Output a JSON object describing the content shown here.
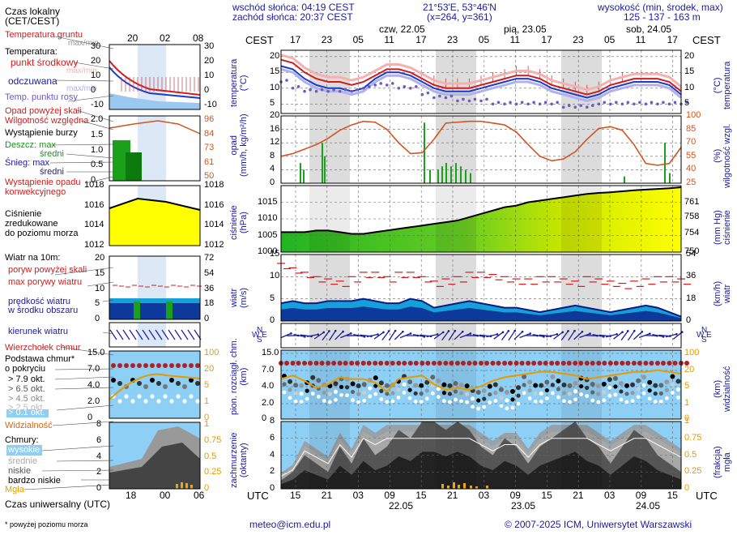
{
  "header": {
    "sunrise": "wschód słońca: 04:19 CEST",
    "sunset": "zachód słońca: 20:37 CEST",
    "coords": "21°53'E, 53°46'N",
    "grid": "(x=264,  y=361)",
    "elev_label": "wysokość (min, środek, max)",
    "elev_values": "125 - 137 - 163 m"
  },
  "days_top": [
    "czw, 22.05",
    "pią, 23.05",
    "sob, 24.05"
  ],
  "cest_label": "CEST",
  "utc_label": "UTC",
  "hours_cest": [
    "17",
    "23",
    "05",
    "11",
    "17",
    "23",
    "05",
    "11",
    "17",
    "23",
    "05",
    "11",
    "17"
  ],
  "hours_utc": [
    "15",
    "21",
    "03",
    "09",
    "15",
    "21",
    "03",
    "09",
    "15",
    "21",
    "03",
    "09",
    "15"
  ],
  "dates_bottom": [
    "22.05",
    "23.05",
    "24.05"
  ],
  "legend": {
    "czas_lokalny": "Czas lokalny",
    "cet_cest": "(CET/CEST)",
    "czas_uniwersalny": "Czas uniwersalny (UTC)",
    "mini_hours_top": [
      "20",
      "02",
      "08"
    ],
    "mini_hours_bottom": [
      "18",
      "00",
      "06"
    ],
    "temp_gruntu": "Temperatura gruntu",
    "temp_gruntu_sub": "max/min",
    "temperatura": "Temperatura:",
    "punkt_srodkowy": "punkt środkowy",
    "max_min": "max/min",
    "odczuwana": "odczuwana",
    "max_min2": "max/min",
    "punkt_rosy": "Temp. punktu rosy",
    "opad_powyzej": "Opad powyżej skali",
    "wilgotnosc": "Wilgotność względna",
    "burza": "Wystąpienie burzy",
    "deszcz_max": "Deszcz: max",
    "deszcz_sredni": "średni",
    "snieg_max": "Śnieg:   max",
    "snieg_sredni": "średni",
    "wystapienie_opadu": "Wystąpienie opadu",
    "konwekcyjnego": "konwekcyjnego",
    "cisnienie": "Ciśnienie",
    "zredukowane": "zredukowane",
    "do_poziomu": "do poziomu morza",
    "wiatr_10m": "Wiatr na 10m:",
    "poryw_powyzej": "poryw powyżej skali",
    "max_porywy": "max porywy wiatru",
    "predkosc": "prędkość wiatru",
    "w_srodku": "w środku obszaru",
    "kierunek": "kierunek wiatru",
    "wierzcholek": "Wierzchołek chmur",
    "podstawa": "Podstawa chmur*",
    "o_pokryciu": "o pokryciu",
    "okt79": "> 7.9 okt.",
    "okt65": "> 6.5 okt.",
    "okt45": "> 4.5 okt.",
    "okt25": "> 2.5 okt.",
    "okt01": "> 0.1 okt.",
    "widzialnosc": "Widzialność",
    "chmury": "Chmury:",
    "wysokie": "wysokie",
    "srednie": "średnie",
    "niskie": "niskie",
    "bardzo_niskie": "bardzo niskie",
    "mgla": "Mgła",
    "footnote": "* powyżej poziomu morza"
  },
  "mini_axes": {
    "temp_left": [
      "30",
      "20",
      "10",
      "0",
      "-10"
    ],
    "temp_right": [
      "30",
      "20",
      "10",
      "0",
      "-10"
    ],
    "precip_left": [
      "2.0",
      "1.5",
      "1.0",
      "0.5",
      "0"
    ],
    "precip_right": [
      "96",
      "84",
      "73",
      "61",
      "50"
    ],
    "press_left": [
      "1018",
      "1016",
      "1014",
      "1012"
    ],
    "press_right": [
      "1018",
      "1016",
      "1014",
      "1012"
    ],
    "wind_left": [
      "20",
      "15",
      "10",
      "5",
      "0"
    ],
    "wind_right": [
      "72",
      "54",
      "36",
      "18",
      "0"
    ],
    "cloud_left": [
      "15.0",
      "7.0",
      "4.0",
      "2.0",
      "0"
    ],
    "cloud_right": [
      "100",
      "20",
      "5",
      "1",
      "0"
    ],
    "oct_left": [
      "8",
      "6",
      "4",
      "2",
      "0"
    ],
    "oct_right": [
      "1",
      "0.75",
      "0.5",
      "0.25",
      "0"
    ]
  },
  "panel_labels": {
    "temp": [
      "temperatura",
      "(°C)"
    ],
    "temp_r": [
      "(°C)",
      "temperatura"
    ],
    "precip": [
      "opad",
      "(mm/h, kg/m²/h)"
    ],
    "precip_r": [
      "(%)",
      "wilgotność wzgl."
    ],
    "press": [
      "ciśnienie",
      "(hPa)"
    ],
    "press_r": [
      "(mm Hg)",
      "ciśnienie"
    ],
    "wind": [
      "wiatr",
      "(m/s)"
    ],
    "wind_r": [
      "(km/h)",
      "wiatr"
    ],
    "cloud": [
      "pion. rozciągł. chm.",
      "(km)"
    ],
    "cloud_r": [
      "(km)",
      "widzialność"
    ],
    "cover": [
      "zachmurzenie",
      "(oktanty)"
    ],
    "cover_r": [
      "(frakcja)",
      "mgła"
    ]
  },
  "dir_letters": {
    "N": "N",
    "W": "W",
    "E": "E",
    "S": "S"
  },
  "footer": {
    "email": "meteo@icm.edu.pl",
    "copyright": "© 2007-2025 ICM, Uniwersytet Warszawski"
  },
  "colors": {
    "blue": "#1a1aa0",
    "red": "#d21c1c",
    "green": "#129a12",
    "orange": "#d2691e",
    "sky": "#8ecff5",
    "yellow": "#ffff00"
  },
  "chart_data": [
    {
      "type": "line",
      "title": "temperatura",
      "ylabel": "(°C)",
      "y_ticks_left": [
        20,
        15,
        10,
        5
      ],
      "y_ticks_right": [
        20,
        15,
        10,
        5
      ],
      "ylim": [
        2,
        22
      ],
      "x_hours": [
        15,
        18,
        21,
        24,
        27,
        30,
        33,
        36,
        39,
        42,
        45,
        48,
        51,
        54,
        57,
        60,
        63,
        66,
        69,
        72,
        75,
        78,
        81,
        84,
        87,
        90,
        93,
        96,
        99,
        102,
        105,
        108,
        111,
        114,
        117
      ],
      "series": [
        {
          "name": "punkt środkowy",
          "values": [
            19,
            18,
            15,
            13,
            12,
            12,
            11,
            12,
            14,
            16,
            16,
            15,
            13,
            11,
            10,
            10,
            10,
            11,
            12,
            13,
            14,
            14,
            13,
            11,
            10,
            9,
            8,
            9,
            11,
            12,
            13,
            13,
            13,
            12,
            9
          ]
        },
        {
          "name": "odczuwana",
          "values": [
            17,
            16,
            13,
            11,
            10,
            10,
            9,
            10,
            13,
            15,
            15,
            14,
            12,
            10,
            9,
            9,
            9,
            10,
            11,
            12,
            13,
            13,
            12,
            10,
            9,
            8,
            7,
            8,
            10,
            11,
            12,
            12,
            12,
            11,
            8
          ]
        },
        {
          "name": "Temp. punktu rosy",
          "values": [
            12,
            10,
            9,
            9,
            9,
            9,
            9,
            10,
            11,
            11,
            10,
            10,
            8,
            7,
            7,
            6,
            6,
            6,
            5,
            5,
            5,
            5,
            5,
            5,
            4,
            4,
            4,
            5,
            5,
            5,
            5,
            5,
            5,
            5,
            5
          ]
        }
      ]
    },
    {
      "type": "bar",
      "title": "opad",
      "ylabel": "(mm/h, kg/m²/h)",
      "y_ticks_left": [
        20,
        16,
        12,
        8,
        4,
        0
      ],
      "y_ticks_right": [
        100,
        85,
        70,
        55,
        40,
        25
      ],
      "series": [
        {
          "name": "Wilgotność względna",
          "values": [
            55,
            58,
            63,
            68,
            75,
            84,
            90,
            94,
            93,
            85,
            70,
            58,
            59,
            74,
            92,
            93,
            94,
            94,
            92,
            90,
            82,
            68,
            55,
            50,
            52,
            60,
            74,
            86,
            88,
            84,
            68,
            47,
            45,
            47,
            65
          ]
        }
      ]
    },
    {
      "type": "area",
      "title": "ciśnienie",
      "ylabel": "(hPa)",
      "y_ticks_left": [
        1015,
        1010,
        1005,
        1000
      ],
      "y_ticks_right": [
        761,
        758,
        754,
        750
      ],
      "ylim": [
        1000,
        1020
      ],
      "series": [
        {
          "name": "Ciśnienie",
          "values": [
            1006,
            1006,
            1006,
            1006.5,
            1006.5,
            1006,
            1005.5,
            1005.5,
            1006,
            1006.5,
            1007,
            1007.5,
            1008,
            1008.5,
            1009,
            1009.5,
            1010.5,
            1011.5,
            1012.5,
            1013.5,
            1014,
            1015,
            1015.5,
            1016,
            1016.5,
            1017,
            1017.5,
            1017.8,
            1018,
            1018.3,
            1018.6,
            1018.8,
            1019,
            1019.2,
            1019.5
          ]
        }
      ]
    },
    {
      "type": "area",
      "title": "wiatr",
      "ylabel": "(m/s)",
      "y_ticks_left": [
        15,
        10,
        5,
        0
      ],
      "y_ticks_right": [
        54,
        36,
        18,
        0
      ],
      "ylim": [
        0,
        15
      ],
      "series": [
        {
          "name": "prędkość wiatru",
          "values": [
            4,
            4.5,
            4,
            4,
            4.5,
            4.5,
            4.5,
            5,
            4.5,
            4,
            4,
            5,
            4.5,
            3,
            3.5,
            4,
            4.5,
            4,
            3.5,
            3,
            3,
            2.5,
            2,
            2.5,
            3,
            3.5,
            3,
            2.5,
            2,
            2.5,
            3,
            3.5,
            3,
            2,
            1
          ]
        },
        {
          "name": "max porywy wiatru",
          "values": [
            13,
            12,
            11,
            10,
            9.5,
            9,
            10,
            11,
            11,
            10,
            11,
            11,
            10,
            9,
            9.5,
            10,
            11,
            11,
            10.5,
            10,
            9.5,
            9.5,
            10,
            10,
            9.5,
            9,
            10,
            9.5,
            9,
            8.5,
            9,
            9.5,
            10,
            10,
            9.5
          ]
        }
      ]
    },
    {
      "type": "scatter",
      "title": "pion. rozciągł. chm.",
      "ylabel": "(km)",
      "y_ticks_left": [
        "15.0",
        "7.0",
        "4.0",
        "2.0",
        "0"
      ],
      "y_ticks_right": [
        100,
        20,
        5,
        1,
        0
      ],
      "series": [
        {
          "name": "Widzialność",
          "values": [
            12,
            14,
            11,
            7,
            9,
            13,
            12,
            12,
            10,
            5,
            12,
            13,
            14,
            9,
            6,
            7,
            6,
            8,
            11,
            13,
            14,
            15,
            16,
            16,
            15,
            14,
            12,
            13,
            14,
            15,
            16,
            16,
            17,
            16,
            15
          ]
        }
      ]
    },
    {
      "type": "area",
      "title": "zachmurzenie",
      "ylabel": "(oktanty)",
      "y_ticks_left": [
        8,
        6,
        4,
        2,
        0
      ],
      "y_ticks_right": [
        1,
        0.75,
        0.5,
        0.25,
        0
      ],
      "ylim": [
        0,
        8
      ],
      "series": [
        {
          "name": "niskie",
          "values": [
            1,
            2,
            4,
            3,
            2,
            5,
            3,
            6,
            4,
            5,
            7,
            6,
            8,
            8,
            7,
            8,
            7,
            5,
            4,
            6,
            5,
            3,
            5,
            6,
            7,
            8,
            6,
            5,
            3,
            5,
            7,
            6,
            4,
            3,
            2
          ]
        },
        {
          "name": "wysokie",
          "values": [
            2,
            3,
            6,
            5,
            4,
            7,
            5,
            8,
            7,
            8,
            8,
            8,
            8,
            8,
            8,
            8,
            8,
            7,
            6,
            7,
            7,
            5,
            7,
            8,
            8,
            8,
            8,
            7,
            6,
            7,
            8,
            8,
            7,
            6,
            5
          ]
        }
      ]
    }
  ]
}
